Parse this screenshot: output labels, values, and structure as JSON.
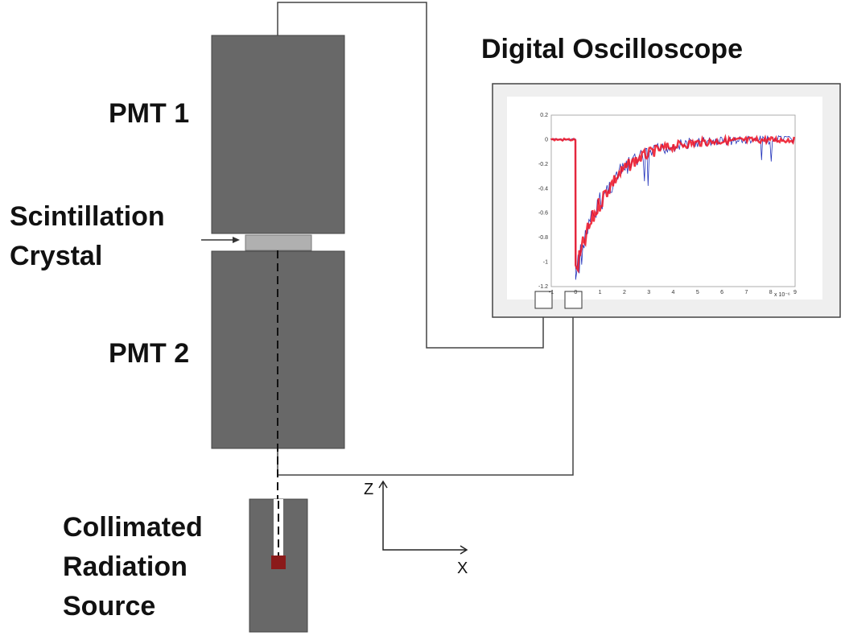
{
  "labels": {
    "pmt1": "PMT 1",
    "pmt2": "PMT 2",
    "crystal": [
      "Scintillation",
      "Crystal"
    ],
    "source": [
      "Collimated",
      "Radiation",
      "Source"
    ],
    "oscilloscope": "Digital Oscilloscope",
    "z_axis": "Z",
    "x_axis": "X"
  },
  "oscilloscope_plot": {
    "yticks": [
      "0.2",
      "0",
      "-0.2",
      "-0.4",
      "-0.6",
      "-0.8",
      "-1",
      "-1.2"
    ],
    "xticks": [
      "-1",
      "0",
      "1",
      "2",
      "3",
      "4",
      "5",
      "6",
      "7",
      "8",
      "9"
    ],
    "x_multiplier": "x 10⁻⁶"
  }
}
